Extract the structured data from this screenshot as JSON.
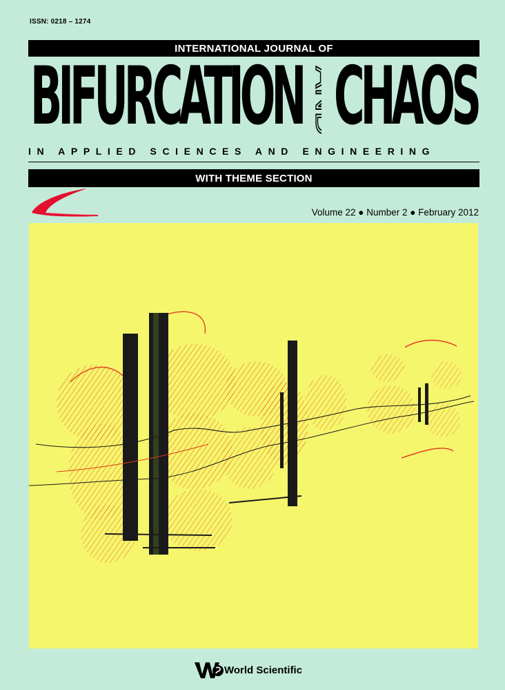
{
  "issn": "ISSN: 0218 – 1274",
  "journal": {
    "title_top": "INTERNATIONAL JOURNAL OF",
    "title_left": "BIFURCATION",
    "title_and": "AND",
    "title_right": "CHAOS",
    "subtitle": "IN APPLIED SCIENCES AND ENGINEERING",
    "theme": "WITH THEME SECTION"
  },
  "issue": {
    "volume": "Volume 22",
    "number": "Number 2",
    "date": "February 2012"
  },
  "publisher": {
    "name": "World Scientific",
    "logo_icon": "ws-logo-icon"
  },
  "colors": {
    "background": "#c4ebd9",
    "artwork_background": "#f6f66c",
    "bars": "#000000",
    "swoosh": "#e3102f",
    "artwork_red": "#e23a1c"
  }
}
